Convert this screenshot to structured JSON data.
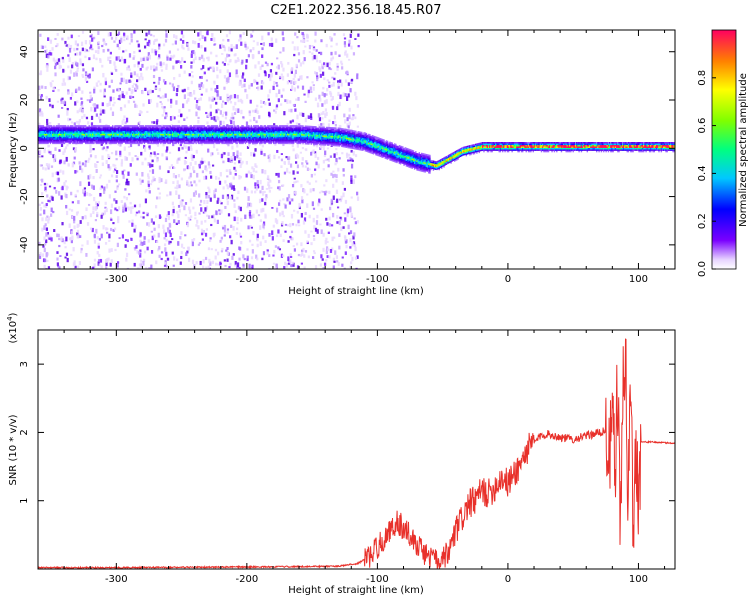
{
  "title": "C2E1.2022.356.18.45.R07",
  "colorbar": {
    "label": "Normalized spectral amplitude",
    "ticks": [
      "0.0",
      "0.2",
      "0.4",
      "0.6",
      "0.8"
    ],
    "tick_values": [
      0.0,
      0.2,
      0.4,
      0.6,
      0.8
    ],
    "range": [
      0,
      1
    ]
  },
  "chart_data": [
    {
      "type": "heatmap",
      "xlabel": "Height of straight line (km)",
      "ylabel": "Frequency (Hz)",
      "xlim": [
        -360,
        128
      ],
      "ylim": [
        -50,
        49
      ],
      "x_ticks": [
        -300,
        -200,
        -100,
        0,
        100
      ],
      "x_tick_labels": [
        "-300",
        "-200",
        "-100",
        "0",
        "100"
      ],
      "y_ticks": [
        -40,
        -20,
        0,
        20,
        40
      ],
      "y_tick_labels": [
        "-40",
        "-20",
        "0",
        "20",
        "40"
      ],
      "colormap": "rainbow (violet→blue→cyan→green→yellow→red)",
      "ridge": {
        "x": [
          -350,
          -300,
          -250,
          -200,
          -160,
          -130,
          -110,
          -90,
          -70,
          -55,
          -45,
          -35,
          -20,
          0,
          50,
          100,
          128
        ],
        "y": [
          6,
          6,
          6,
          6,
          6,
          5,
          3,
          -1,
          -5,
          -7,
          -4,
          -1,
          1,
          1,
          1,
          1,
          1
        ]
      }
    },
    {
      "type": "line",
      "xlabel": "Height of straight line (km)",
      "ylabel": "SNR (10 * v/v)",
      "y_multiplier": "(x10",
      "y_multiplier_exp": "4",
      "y_multiplier_close": ")",
      "xlim": [
        -360,
        128
      ],
      "ylim": [
        0,
        3.5
      ],
      "x_ticks": [
        -300,
        -200,
        -100,
        0,
        100
      ],
      "x_tick_labels": [
        "-300",
        "-200",
        "-100",
        "0",
        "100"
      ],
      "y_ticks": [
        1,
        2,
        3
      ],
      "y_tick_labels": [
        "1",
        "2",
        "3"
      ],
      "series": [
        {
          "color": "#e8302a",
          "x": [
            -360,
            -300,
            -200,
            -130,
            -115,
            -105,
            -100,
            -95,
            -90,
            -85,
            -80,
            -75,
            -70,
            -65,
            -60,
            -55,
            -50,
            -45,
            -40,
            -35,
            -30,
            -25,
            -20,
            -15,
            -10,
            -5,
            0,
            5,
            10,
            15,
            20,
            25,
            30,
            40,
            50,
            60,
            70,
            75,
            78,
            80,
            82,
            84,
            86,
            88,
            90,
            92,
            94,
            96,
            98,
            100,
            102,
            110,
            128
          ],
          "y": [
            0.02,
            0.02,
            0.03,
            0.04,
            0.08,
            0.2,
            0.32,
            0.45,
            0.55,
            0.7,
            0.6,
            0.5,
            0.38,
            0.25,
            0.18,
            0.12,
            0.08,
            0.25,
            0.55,
            0.75,
            0.95,
            1.0,
            1.15,
            1.1,
            1.2,
            1.35,
            1.25,
            1.4,
            1.55,
            1.75,
            1.85,
            1.95,
            1.98,
            1.93,
            1.9,
            1.95,
            2.0,
            2.02,
            1.6,
            2.3,
            1.3,
            2.8,
            0.6,
            2.4,
            3.4,
            0.8,
            2.9,
            0.4,
            2.0,
            1.0,
            1.86,
            1.86,
            1.84
          ]
        }
      ]
    }
  ]
}
